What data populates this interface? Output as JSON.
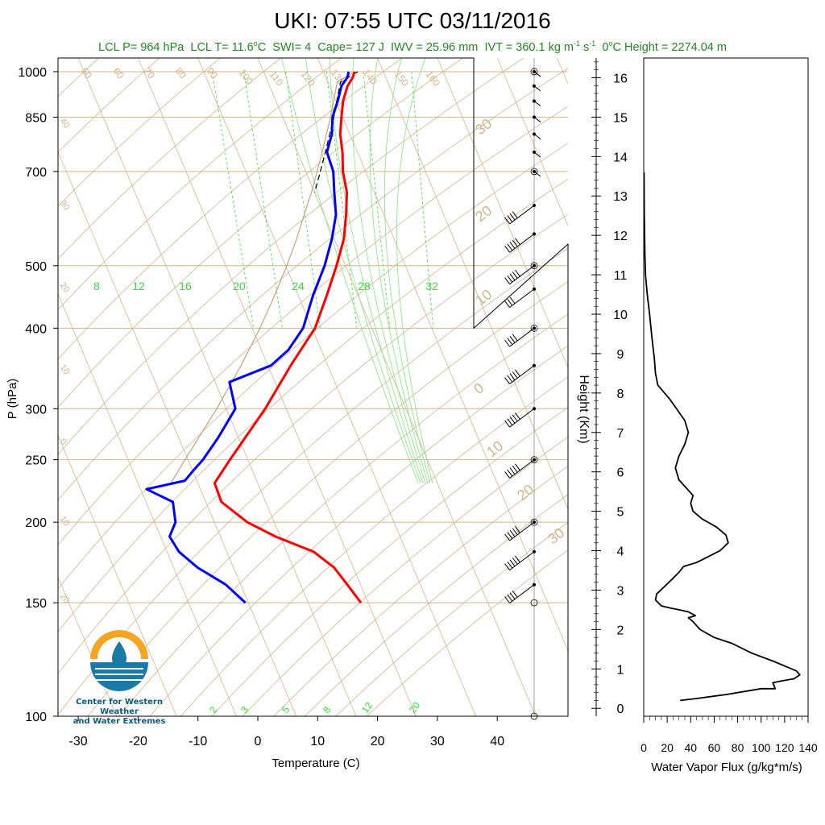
{
  "title": "UKI: 07:55 UTC 03/11/2016",
  "subtitle": {
    "lcl_p": "LCL P= 964 hPa",
    "lcl_t_pre": "LCL T= 11.6",
    "lcl_t_unit": "o",
    "lcl_t_post": "C",
    "swi": "SWI= 4",
    "cape": "Cape= 127 J",
    "iwv": "IWV = 25.96 mm",
    "ivt_pre": "IVT = 360.1 kg m",
    "ivt_sup1": "-1",
    "ivt_mid": " s",
    "ivt_sup2": "-1",
    "zero_pre": "0",
    "zero_unit": "o",
    "zero_post": "C Height = 2274.04 m"
  },
  "logo": {
    "line1": "Center for Western Weather",
    "line2": "and Water Extremes"
  },
  "colors": {
    "temperature": "#ff0000",
    "dewpoint": "#0000ff",
    "isotherm_skew": "#d2b48c",
    "mixing_ratio": "#33dd33",
    "text_green": "#1f8a1f",
    "logo_orange": "#f4a623",
    "logo_blue": "#1a7aa6"
  },
  "chart_data": [
    {
      "type": "line",
      "chart": "skew-t",
      "xlabel": "Temperature (C)",
      "ylabel": "P (hPa)",
      "xlim": [
        -35,
        52
      ],
      "ylim": [
        1050,
        100
      ],
      "pressure_ticks": [
        100,
        150,
        200,
        250,
        300,
        400,
        500,
        700,
        850,
        1000
      ],
      "temperature_ticks": [
        -30,
        -20,
        -10,
        0,
        10,
        20,
        30,
        40
      ],
      "temperature_tick_labels": [
        "-30",
        "-20",
        "-10",
        "0",
        "10",
        "20",
        "30",
        "40"
      ],
      "skewed_isotherm_labels": [
        "30",
        "20",
        "10",
        "0",
        "10",
        "20",
        "30"
      ],
      "mixing_ratio_labels_upper": [
        "8",
        "12",
        "16",
        "20",
        "24",
        "28",
        "32"
      ],
      "mixing_ratio_labels_lower": [
        "2",
        "3",
        "5",
        "8",
        "12",
        "20"
      ],
      "dry_adiabat_labels": [
        "50",
        "60",
        "70",
        "80",
        "90",
        "100",
        "110",
        "120",
        "130",
        "140",
        "150",
        "160"
      ],
      "left_margin_labels": [
        "40",
        "30",
        "20",
        "10",
        "0",
        "10",
        "20"
      ],
      "series": [
        {
          "name": "Temperature",
          "points": [
            [
              1000,
              15.2
            ],
            [
              980,
              14.5
            ],
            [
              950,
              13.0
            ],
            [
              900,
              11.2
            ],
            [
              850,
              9.8
            ],
            [
              800,
              8.4
            ],
            [
              750,
              7.5
            ],
            [
              700,
              6.2
            ],
            [
              650,
              5.4
            ],
            [
              600,
              3.7
            ],
            [
              550,
              1.6
            ],
            [
              500,
              -1.5
            ],
            [
              450,
              -5.2
            ],
            [
              400,
              -9.5
            ],
            [
              350,
              -16.2
            ],
            [
              300,
              -23.5
            ],
            [
              250,
              -33.0
            ],
            [
              230,
              -37.2
            ],
            [
              215,
              -37.4
            ],
            [
              200,
              -34.5
            ],
            [
              190,
              -30.8
            ],
            [
              180,
              -25.5
            ],
            [
              170,
              -23.2
            ],
            [
              160,
              -22.2
            ],
            [
              150,
              -21.2
            ]
          ]
        },
        {
          "name": "Dewpoint",
          "points": [
            [
              1000,
              14.2
            ],
            [
              980,
              13.6
            ],
            [
              950,
              12.0
            ],
            [
              900,
              10.3
            ],
            [
              850,
              8.3
            ],
            [
              800,
              7.0
            ],
            [
              750,
              4.9
            ],
            [
              700,
              4.6
            ],
            [
              650,
              3.3
            ],
            [
              600,
              2.0
            ],
            [
              550,
              -0.4
            ],
            [
              500,
              -3.5
            ],
            [
              450,
              -7.5
            ],
            [
              400,
              -11.5
            ],
            [
              370,
              -15.5
            ],
            [
              350,
              -19.5
            ],
            [
              330,
              -27.6
            ],
            [
              300,
              -28.5
            ],
            [
              270,
              -33.5
            ],
            [
              250,
              -37.5
            ],
            [
              240,
              -40.0
            ],
            [
              232,
              -42.0
            ],
            [
              225,
              -49.0
            ],
            [
              215,
              -45.5
            ],
            [
              200,
              -46.5
            ],
            [
              190,
              -48.5
            ],
            [
              180,
              -48.0
            ],
            [
              170,
              -46.0
            ],
            [
              160,
              -42.5
            ],
            [
              150,
              -40.5
            ]
          ]
        },
        {
          "name": "Parcel",
          "points": [
            [
              1000,
              15.2
            ],
            [
              964,
              11.6
            ],
            [
              900,
              9.6
            ],
            [
              850,
              8.0
            ],
            [
              800,
              6.1
            ],
            [
              750,
              4.1
            ],
            [
              700,
              1.9
            ],
            [
              650,
              -0.5
            ],
            [
              600,
              -3.3
            ],
            [
              550,
              -6.3
            ],
            [
              500,
              -9.8
            ],
            [
              450,
              -13.9
            ],
            [
              400,
              -18.7
            ],
            [
              350,
              -24.5
            ],
            [
              300,
              -31.6
            ],
            [
              250,
              -40.5
            ],
            [
              230,
              -44.5
            ]
          ]
        }
      ],
      "wind_barbs_knots": [
        {
          "p": 1000,
          "kt": 5
        },
        {
          "p": 950,
          "kt": 10
        },
        {
          "p": 900,
          "kt": 15
        },
        {
          "p": 850,
          "kt": 15
        },
        {
          "p": 800,
          "kt": 10
        },
        {
          "p": 750,
          "kt": 10
        },
        {
          "p": 700,
          "kt": 5
        },
        {
          "p": 620,
          "kt": 40
        },
        {
          "p": 560,
          "kt": 50
        },
        {
          "p": 500,
          "kt": 50
        },
        {
          "p": 460,
          "kt": 35
        },
        {
          "p": 400,
          "kt": 45
        },
        {
          "p": 350,
          "kt": 55
        },
        {
          "p": 300,
          "kt": 55
        },
        {
          "p": 250,
          "kt": 50
        },
        {
          "p": 200,
          "kt": 55
        },
        {
          "p": 180,
          "kt": 50
        },
        {
          "p": 160,
          "kt": 45
        }
      ]
    },
    {
      "type": "line",
      "chart": "water-vapor-flux-profile",
      "xlabel": "Water Vapor Flux (g/kg*m/s)",
      "ylabel": "Height (Km)",
      "xlim": [
        0,
        140
      ],
      "ylim": [
        -0.2,
        16.5
      ],
      "x_ticks": [
        0,
        20,
        40,
        60,
        80,
        100,
        120,
        140
      ],
      "x_tick_labels": [
        "0",
        "20",
        "40",
        "60",
        "80",
        "100",
        "120",
        "140"
      ],
      "y_ticks": [
        0,
        1,
        2,
        3,
        4,
        5,
        6,
        7,
        8,
        9,
        10,
        11,
        12,
        13,
        14,
        15,
        16
      ],
      "y_tick_labels": [
        "0",
        "1",
        "2",
        "3",
        "4",
        "5",
        "6",
        "7",
        "8",
        "9",
        "10",
        "11",
        "12",
        "13",
        "14",
        "15",
        "16"
      ],
      "series": [
        {
          "name": "flux",
          "points": [
            [
              31,
              0.2
            ],
            [
              45,
              0.25
            ],
            [
              70,
              0.35
            ],
            [
              100,
              0.5
            ],
            [
              112,
              0.5
            ],
            [
              110,
              0.65
            ],
            [
              118,
              0.7
            ],
            [
              128,
              0.75
            ],
            [
              133,
              0.85
            ],
            [
              130,
              0.95
            ],
            [
              122,
              1.05
            ],
            [
              110,
              1.2
            ],
            [
              92,
              1.4
            ],
            [
              75,
              1.65
            ],
            [
              60,
              1.8
            ],
            [
              48,
              2.0
            ],
            [
              42,
              2.2
            ],
            [
              38,
              2.3
            ],
            [
              44,
              2.35
            ],
            [
              38,
              2.45
            ],
            [
              30,
              2.5
            ],
            [
              22,
              2.55
            ],
            [
              15,
              2.6
            ],
            [
              10,
              2.75
            ],
            [
              11,
              2.9
            ],
            [
              18,
              3.1
            ],
            [
              25,
              3.3
            ],
            [
              30,
              3.45
            ],
            [
              34,
              3.6
            ],
            [
              45,
              3.7
            ],
            [
              55,
              3.85
            ],
            [
              65,
              4.0
            ],
            [
              72,
              4.2
            ],
            [
              70,
              4.4
            ],
            [
              62,
              4.6
            ],
            [
              50,
              4.8
            ],
            [
              42,
              5.0
            ],
            [
              40,
              5.2
            ],
            [
              42,
              5.4
            ],
            [
              36,
              5.6
            ],
            [
              30,
              5.8
            ],
            [
              27,
              6.1
            ],
            [
              30,
              6.4
            ],
            [
              35,
              6.7
            ],
            [
              38,
              7.0
            ],
            [
              35,
              7.3
            ],
            [
              28,
              7.6
            ],
            [
              22,
              7.85
            ],
            [
              12,
              8.2
            ],
            [
              10,
              8.5
            ],
            [
              9,
              8.9
            ],
            [
              7,
              9.4
            ],
            [
              5,
              10.0
            ],
            [
              3,
              10.5
            ],
            [
              1.5,
              11.0
            ],
            [
              1,
              11.5
            ],
            [
              0.5,
              12.5
            ],
            [
              0.3,
              13.6
            ]
          ]
        }
      ]
    }
  ]
}
